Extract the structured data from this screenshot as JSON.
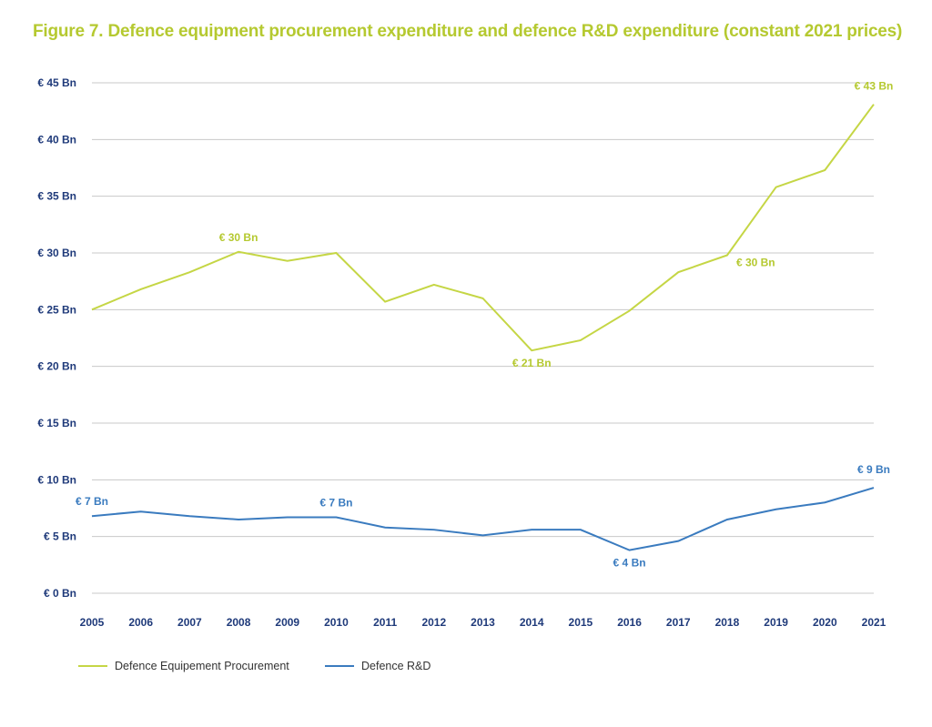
{
  "chart_data": {
    "type": "line",
    "title": "Figure 7. Defence equipment procurement expenditure and defence R&D expenditure (constant 2021 prices)",
    "x": [
      "2005",
      "2006",
      "2007",
      "2008",
      "2009",
      "2010",
      "2011",
      "2012",
      "2013",
      "2014",
      "2015",
      "2016",
      "2017",
      "2018",
      "2019",
      "2020",
      "2021"
    ],
    "ylim": [
      0,
      45
    ],
    "yticks": [
      "€ 0 Bn",
      "€ 5 Bn",
      "€ 10 Bn",
      "€ 15 Bn",
      "€ 20 Bn",
      "€ 25 Bn",
      "€ 30 Bn",
      "€ 35 Bn",
      "€ 40 Bn",
      "€ 45 Bn"
    ],
    "grid": true,
    "legend_position": "bottom-left",
    "series": [
      {
        "name": "Defence Equipement Procurement",
        "color": "#c5d645",
        "values": [
          25.0,
          26.8,
          28.3,
          30.1,
          29.3,
          30.0,
          25.7,
          27.2,
          26.0,
          21.4,
          22.3,
          24.9,
          28.3,
          29.8,
          35.8,
          37.3,
          43.1
        ],
        "labels": [
          {
            "x": "2008",
            "text": "€ 30 Bn",
            "pos": "above"
          },
          {
            "x": "2014",
            "text": "€ 21 Bn",
            "pos": "below"
          },
          {
            "x": "2018",
            "text": "€ 30 Bn",
            "pos": "right"
          },
          {
            "x": "2021",
            "text": "€ 43 Bn",
            "pos": "above"
          }
        ]
      },
      {
        "name": "Defence R&D",
        "color": "#3a7bbf",
        "values": [
          6.8,
          7.2,
          6.8,
          6.5,
          6.7,
          6.7,
          5.8,
          5.6,
          5.1,
          5.6,
          5.6,
          3.8,
          4.6,
          6.5,
          7.4,
          8.0,
          9.3
        ],
        "labels": [
          {
            "x": "2005",
            "text": "€ 7 Bn",
            "pos": "above"
          },
          {
            "x": "2010",
            "text": "€ 7 Bn",
            "pos": "above"
          },
          {
            "x": "2016",
            "text": "€ 4 Bn",
            "pos": "below"
          },
          {
            "x": "2021",
            "text": "€ 9 Bn",
            "pos": "above"
          }
        ]
      }
    ]
  }
}
